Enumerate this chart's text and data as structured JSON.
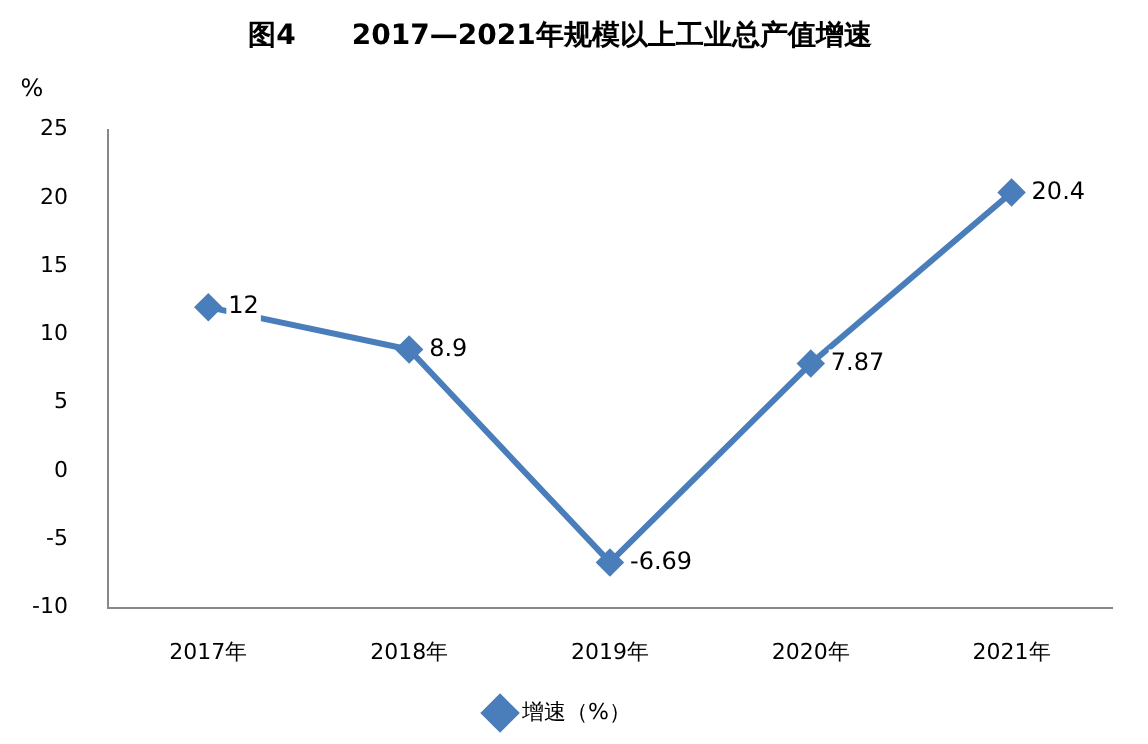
{
  "chart_data": {
    "type": "line",
    "title": "图4　　2017—2021年规模以上工业总产值增速",
    "ylabel": "%",
    "categories": [
      "2017年",
      "2018年",
      "2019年",
      "2020年",
      "2021年"
    ],
    "series": [
      {
        "name": "增速（%）",
        "color": "#4a7ebb",
        "values": [
          12,
          8.9,
          -6.69,
          7.87,
          20.4
        ]
      }
    ],
    "ylim": [
      -10,
      25
    ],
    "yticks": [
      -10,
      -5,
      0,
      5,
      10,
      15,
      20,
      25
    ],
    "grid": false,
    "legend": "bottom",
    "marker": "diamond",
    "line_style": "solid",
    "data_labels": true
  }
}
